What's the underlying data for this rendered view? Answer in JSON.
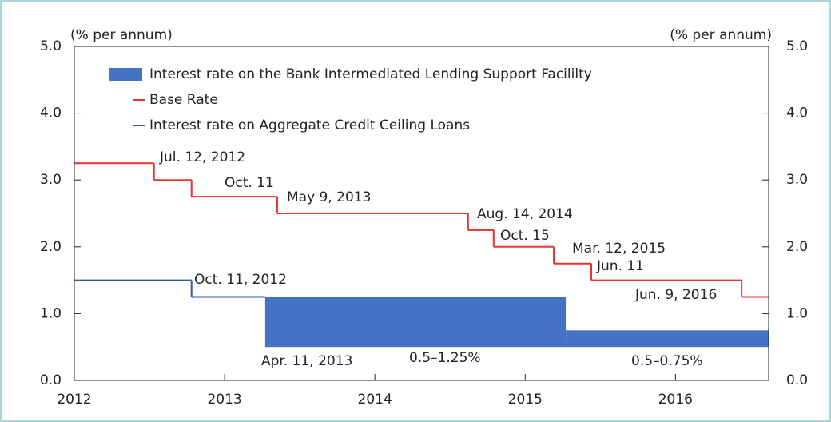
{
  "chart_data": {
    "type": "line",
    "y_label": "(% per annum)",
    "y2_label": "(% per annum)",
    "xlim": [
      2012,
      2016.62
    ],
    "xticks": [
      2012,
      2013,
      2014,
      2015,
      2016
    ],
    "ylim": [
      0,
      5
    ],
    "yticks": [
      {
        "value": 0,
        "label": "0.0"
      },
      {
        "value": 1,
        "label": "1.0"
      },
      {
        "value": 2,
        "label": "2.0"
      },
      {
        "value": 3,
        "label": "3.0"
      },
      {
        "value": 4,
        "label": "4.0"
      },
      {
        "value": 5,
        "label": "5.0"
      }
    ],
    "y2lim": [
      0,
      5
    ],
    "y2ticks": [
      {
        "value": 0,
        "label": "0.0"
      },
      {
        "value": 1,
        "label": "1.0"
      },
      {
        "value": 2,
        "label": "2.0"
      },
      {
        "value": 3,
        "label": "3.0"
      },
      {
        "value": 4,
        "label": "4.0"
      },
      {
        "value": 5,
        "label": "5.0"
      }
    ],
    "grid": false,
    "legend": "upper left",
    "series": [
      {
        "name": "Interest rate on the Bank Intermediated Lending Support Facililty",
        "kind": "range",
        "color": "#4472c4",
        "x": [
          2013.27,
          2015.27
        ],
        "x_end": 2016.62,
        "low": [
          0.5,
          0.5
        ],
        "high": [
          1.25,
          0.75
        ]
      },
      {
        "name": "Base Rate",
        "kind": "step",
        "color": "#e8302f",
        "x": [
          2012,
          2012.53,
          2012.78,
          2013.35,
          2014.62,
          2014.79,
          2015.19,
          2015.44,
          2016.44
        ],
        "x_end": 2016.62,
        "values": [
          3.25,
          3.0,
          2.75,
          2.5,
          2.25,
          2.0,
          1.75,
          1.5,
          1.25
        ]
      },
      {
        "name": "Interest rate on Aggregate Credit Ceiling Loans",
        "kind": "step",
        "color": "#2e5aa8",
        "x": [
          2012,
          2012.78
        ],
        "x_end": 2013.27,
        "values": [
          1.5,
          1.25
        ]
      }
    ],
    "annotations": [
      "Jul. 12, 2012",
      "Oct. 11",
      "May 9, 2013",
      "Aug. 14, 2014",
      "Oct. 15",
      "Mar. 12, 2015",
      "Jun. 11",
      "Jun. 9, 2016",
      "Oct. 11, 2012",
      "Apr. 11, 2013",
      "0.5–1.25%",
      "0.5–0.75%"
    ]
  }
}
